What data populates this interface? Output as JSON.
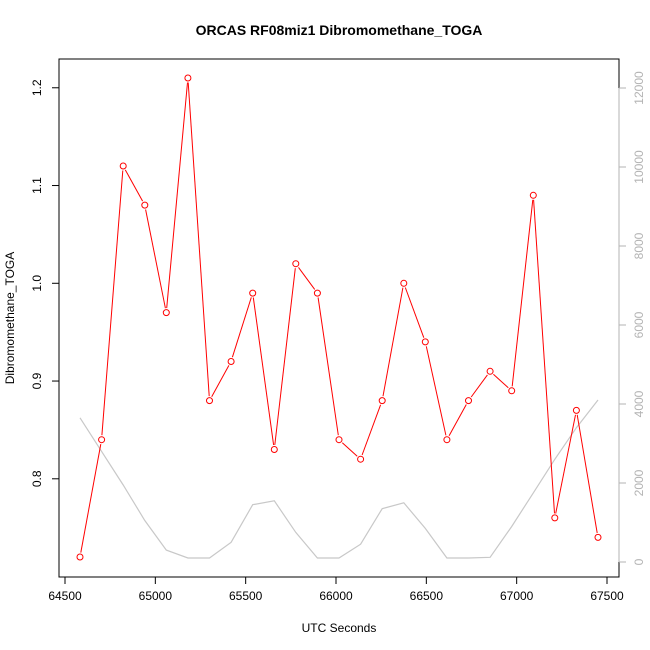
{
  "chart_data": {
    "type": "line",
    "title": "ORCAS RF08miz1 Dibromomethane_TOGA",
    "xlabel": "UTC Seconds",
    "ylabel": "Dibromomethane_TOGA",
    "xlim": [
      64500,
      67500
    ],
    "ylim": [
      0.72,
      1.21
    ],
    "y2lim": [
      0,
      12000
    ],
    "x_ticks": [
      64500,
      65000,
      65500,
      66000,
      66500,
      67000,
      67500
    ],
    "y_ticks": [
      0.8,
      0.9,
      1.0,
      1.1,
      1.2
    ],
    "y_tick_labels": [
      "0.8",
      "0.9",
      "1.0",
      "1.1",
      "1.2"
    ],
    "y2_ticks": [
      0,
      2000,
      4000,
      6000,
      8000,
      10000,
      12000
    ],
    "grid": false,
    "series": [
      {
        "axis": "left",
        "color": "#ff0000",
        "marker": "open-circle",
        "x": [
          64580,
          64700,
          64820,
          64940,
          65060,
          65180,
          65300,
          65420,
          65540,
          65660,
          65780,
          65900,
          66020,
          66140,
          66260,
          66380,
          66500,
          66620,
          66740,
          66860,
          66980,
          67100,
          67220,
          67340,
          67460
        ],
        "y": [
          0.72,
          0.84,
          1.12,
          1.08,
          0.97,
          1.21,
          0.88,
          0.92,
          0.99,
          0.83,
          1.02,
          0.99,
          0.84,
          0.82,
          0.88,
          1.0,
          0.94,
          0.84,
          0.88,
          0.91,
          0.89,
          1.09,
          0.76,
          0.87,
          0.74
        ]
      },
      {
        "axis": "right",
        "color": "#c8c8c8",
        "marker": "none",
        "x": [
          64580,
          64700,
          64820,
          64940,
          65060,
          65180,
          65300,
          65420,
          65540,
          65660,
          65780,
          65900,
          66020,
          66140,
          66260,
          66380,
          66500,
          66620,
          66740,
          66860,
          66980,
          67100,
          67220,
          67340,
          67460
        ],
        "y": [
          3650,
          2800,
          1950,
          1050,
          300,
          100,
          100,
          500,
          1450,
          1550,
          750,
          100,
          100,
          450,
          1350,
          1500,
          850,
          100,
          100,
          120,
          900,
          1750,
          2600,
          3400,
          4100
        ]
      }
    ]
  }
}
